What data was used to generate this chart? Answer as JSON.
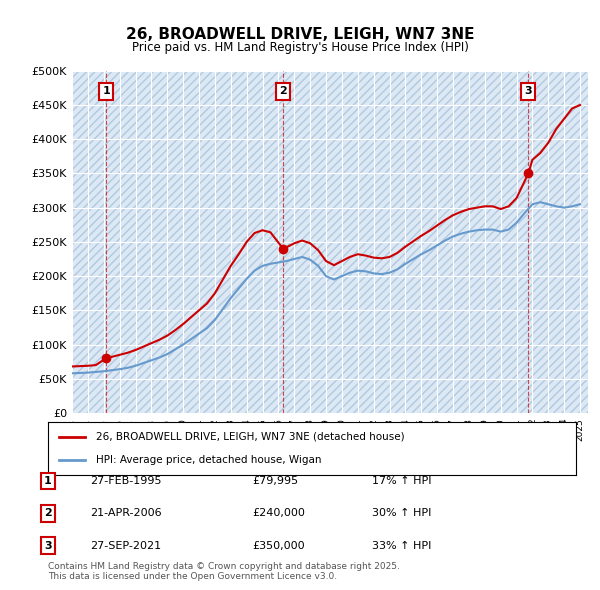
{
  "title": "26, BROADWELL DRIVE, LEIGH, WN7 3NE",
  "subtitle": "Price paid vs. HM Land Registry's House Price Index (HPI)",
  "ylabel_ticks": [
    "£0",
    "£50K",
    "£100K",
    "£150K",
    "£200K",
    "£250K",
    "£300K",
    "£350K",
    "£400K",
    "£450K",
    "£500K"
  ],
  "ytick_values": [
    0,
    50000,
    100000,
    150000,
    200000,
    250000,
    300000,
    350000,
    400000,
    450000,
    500000
  ],
  "ylim": [
    0,
    500000
  ],
  "xlim_start": 1993.0,
  "xlim_end": 2025.5,
  "bg_color": "#dce9f5",
  "plot_bg_color": "#dce9f5",
  "grid_color": "#ffffff",
  "hatch_color": "#b0c8e0",
  "legend_label_red": "26, BROADWELL DRIVE, LEIGH, WN7 3NE (detached house)",
  "legend_label_blue": "HPI: Average price, detached house, Wigan",
  "sale_dates": [
    1995.15,
    2006.3,
    2021.74
  ],
  "sale_prices": [
    79995,
    240000,
    350000
  ],
  "sale_labels": [
    "1",
    "2",
    "3"
  ],
  "sale_info": [
    {
      "num": "1",
      "date": "27-FEB-1995",
      "price": "£79,995",
      "hpi": "17% ↑ HPI"
    },
    {
      "num": "2",
      "date": "21-APR-2006",
      "price": "£240,000",
      "hpi": "30% ↑ HPI"
    },
    {
      "num": "3",
      "date": "27-SEP-2021",
      "price": "£350,000",
      "hpi": "33% ↑ HPI"
    }
  ],
  "red_color": "#cc0000",
  "blue_color": "#6699cc",
  "footnote": "Contains HM Land Registry data © Crown copyright and database right 2025.\nThis data is licensed under the Open Government Licence v3.0.",
  "hpi_x": [
    1993.0,
    1993.5,
    1994.0,
    1994.5,
    1995.0,
    1995.5,
    1996.0,
    1996.5,
    1997.0,
    1997.5,
    1998.0,
    1998.5,
    1999.0,
    1999.5,
    2000.0,
    2000.5,
    2001.0,
    2001.5,
    2002.0,
    2002.5,
    2003.0,
    2003.5,
    2004.0,
    2004.5,
    2005.0,
    2005.5,
    2006.0,
    2006.5,
    2007.0,
    2007.5,
    2008.0,
    2008.5,
    2009.0,
    2009.5,
    2010.0,
    2010.5,
    2011.0,
    2011.5,
    2012.0,
    2012.5,
    2013.0,
    2013.5,
    2014.0,
    2014.5,
    2015.0,
    2015.5,
    2016.0,
    2016.5,
    2017.0,
    2017.5,
    2018.0,
    2018.5,
    2019.0,
    2019.5,
    2020.0,
    2020.5,
    2021.0,
    2021.5,
    2022.0,
    2022.5,
    2023.0,
    2023.5,
    2024.0,
    2024.5,
    2025.0
  ],
  "hpi_y": [
    58000,
    58500,
    59000,
    60000,
    61000,
    62500,
    64000,
    66000,
    69000,
    73000,
    77000,
    81000,
    86000,
    93000,
    100000,
    108000,
    116000,
    124000,
    136000,
    152000,
    168000,
    182000,
    196000,
    208000,
    215000,
    218000,
    220000,
    222000,
    225000,
    228000,
    224000,
    215000,
    200000,
    195000,
    200000,
    205000,
    208000,
    207000,
    204000,
    203000,
    205000,
    210000,
    218000,
    225000,
    232000,
    238000,
    245000,
    252000,
    258000,
    262000,
    265000,
    267000,
    268000,
    268000,
    265000,
    268000,
    278000,
    292000,
    305000,
    308000,
    305000,
    302000,
    300000,
    302000,
    305000
  ],
  "price_x": [
    1993.0,
    1993.5,
    1994.0,
    1994.5,
    1995.15,
    1995.5,
    1996.0,
    1996.5,
    1997.0,
    1997.5,
    1998.0,
    1998.5,
    1999.0,
    1999.5,
    2000.0,
    2000.5,
    2001.0,
    2001.5,
    2002.0,
    2002.5,
    2003.0,
    2003.5,
    2004.0,
    2004.5,
    2005.0,
    2005.5,
    2006.3,
    2006.5,
    2007.0,
    2007.5,
    2008.0,
    2008.5,
    2009.0,
    2009.5,
    2010.0,
    2010.5,
    2011.0,
    2011.5,
    2012.0,
    2012.5,
    2013.0,
    2013.5,
    2014.0,
    2014.5,
    2015.0,
    2015.5,
    2016.0,
    2016.5,
    2017.0,
    2017.5,
    2018.0,
    2018.5,
    2019.0,
    2019.5,
    2020.0,
    2020.5,
    2021.0,
    2021.74,
    2022.0,
    2022.5,
    2023.0,
    2023.5,
    2024.0,
    2024.5,
    2025.0
  ],
  "price_y": [
    68000,
    68500,
    69000,
    70000,
    79995,
    82000,
    85000,
    88000,
    92000,
    97000,
    102000,
    107000,
    113000,
    121000,
    130000,
    140000,
    150000,
    160000,
    175000,
    195000,
    215000,
    232000,
    250000,
    263000,
    267000,
    264000,
    240000,
    242000,
    248000,
    252000,
    248000,
    238000,
    222000,
    216000,
    222000,
    228000,
    232000,
    230000,
    227000,
    226000,
    228000,
    234000,
    243000,
    251000,
    259000,
    266000,
    274000,
    282000,
    289000,
    294000,
    298000,
    300000,
    302000,
    302000,
    298000,
    302000,
    314000,
    350000,
    370000,
    380000,
    395000,
    415000,
    430000,
    445000,
    450000
  ]
}
